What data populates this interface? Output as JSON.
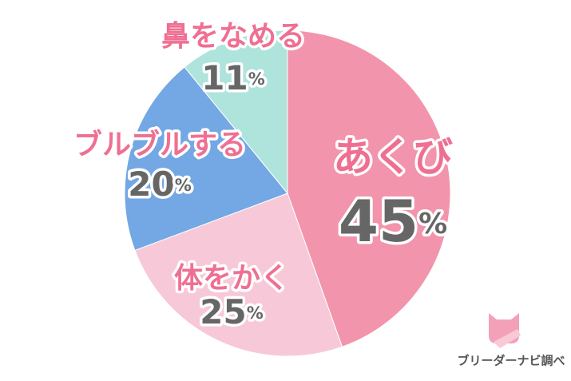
{
  "chart_data": {
    "type": "pie",
    "categories": [
      "あくび",
      "体をかく",
      "ブルブルする",
      "鼻をなめる"
    ],
    "values": [
      45,
      25,
      20,
      11
    ],
    "value_labels": [
      "45%",
      "25%",
      "20%",
      "11%"
    ],
    "colors": [
      "#f294ac",
      "#f7c9d8",
      "#73a8e4",
      "#afe4dc"
    ],
    "source": "ブリーダーナビ調べ"
  }
}
